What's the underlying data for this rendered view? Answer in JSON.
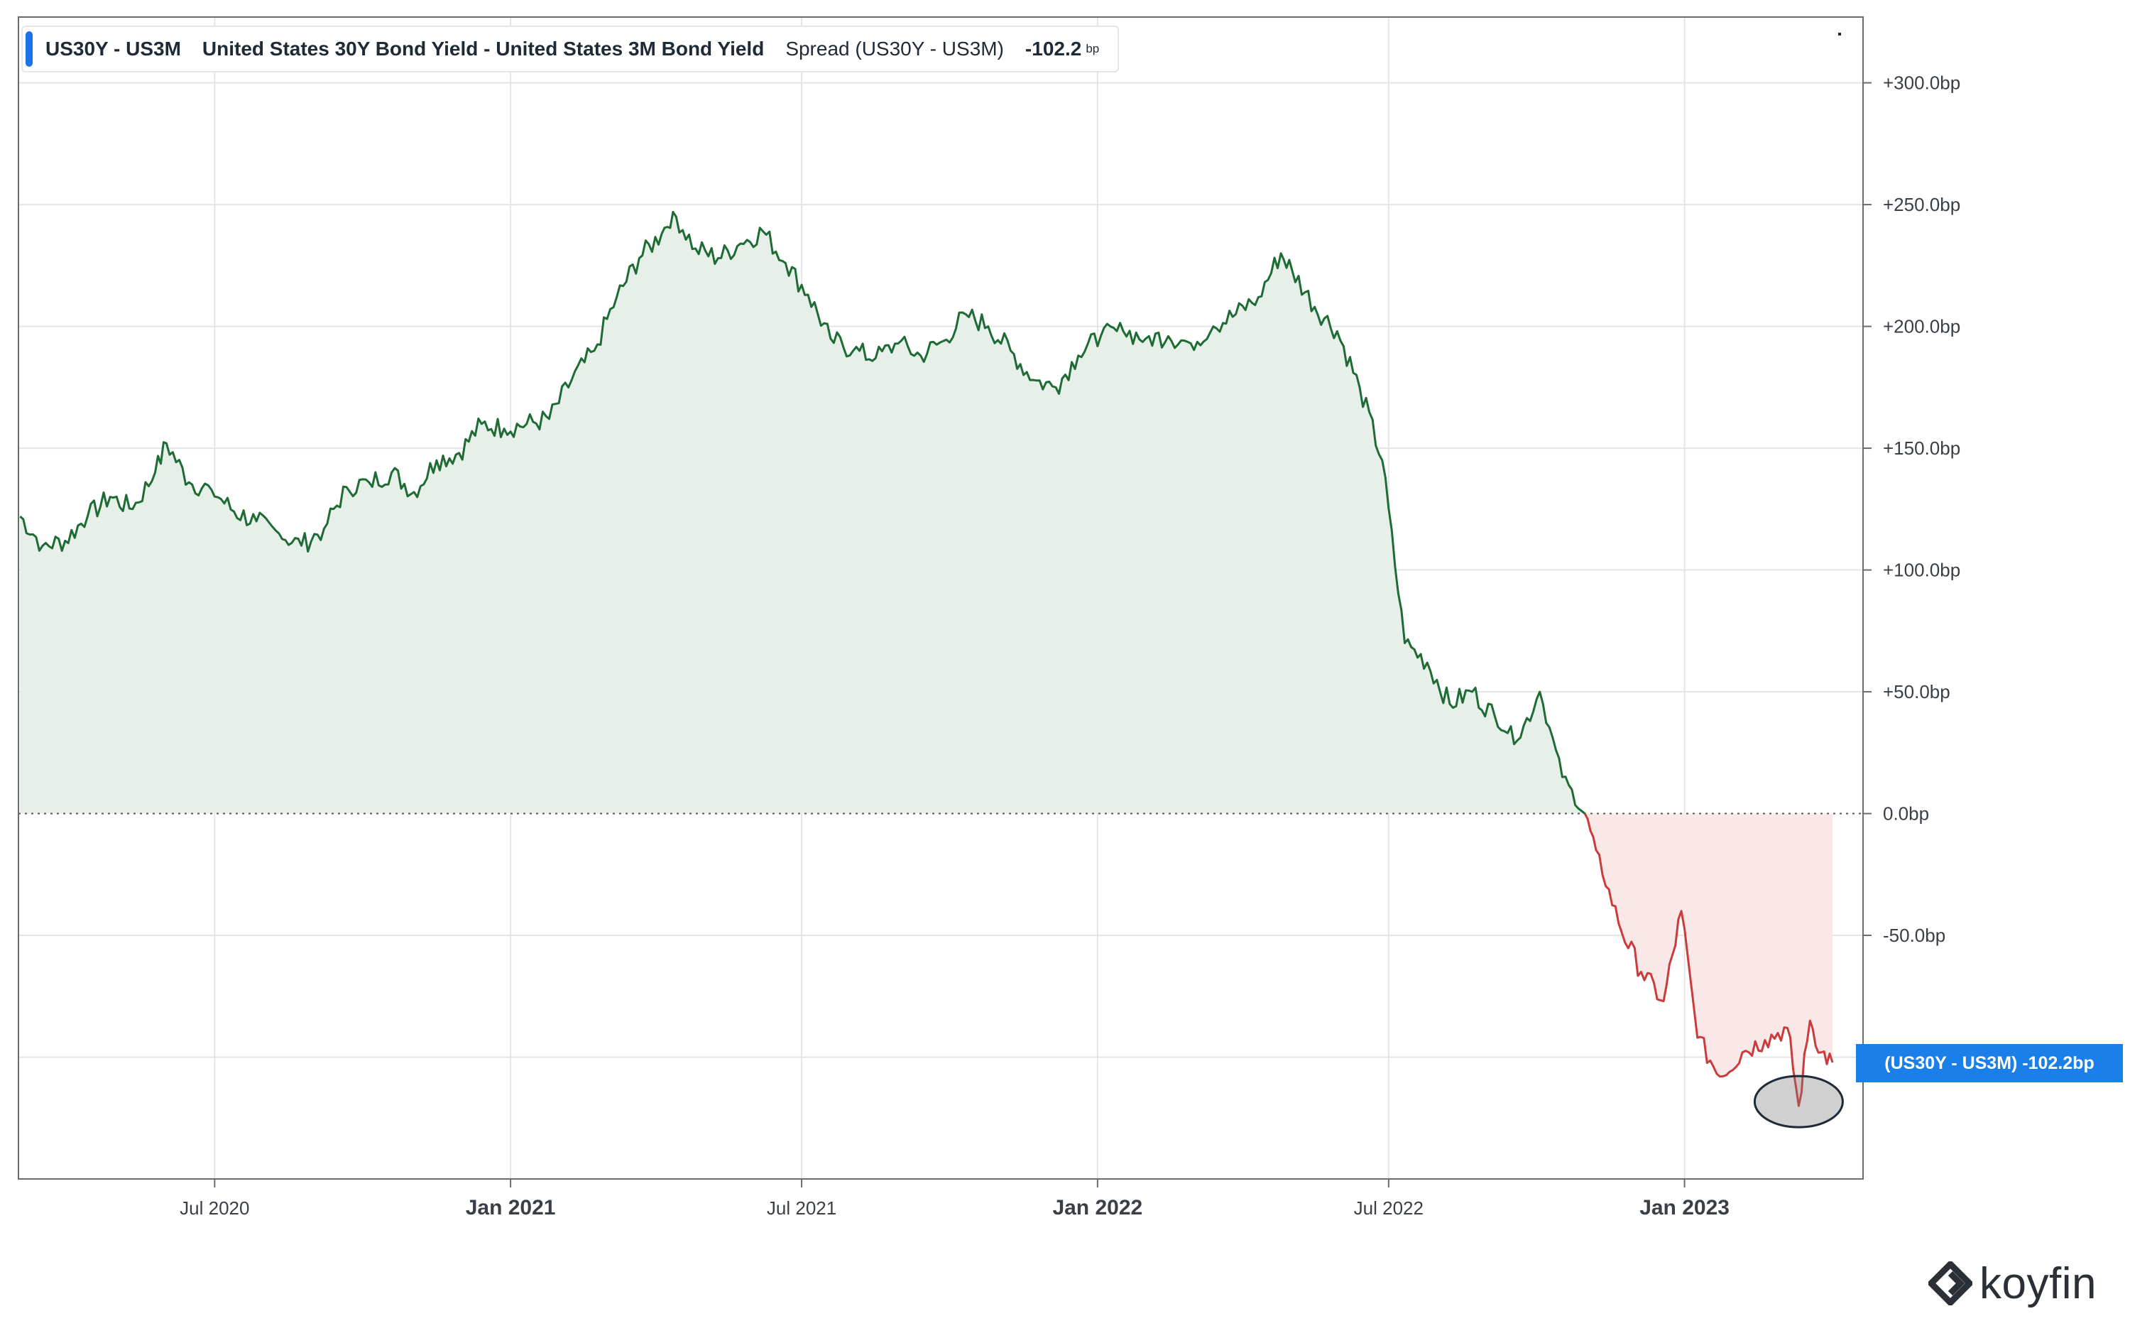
{
  "header": {
    "ticker": "US30Y - US3M",
    "description": "United States 30Y Bond Yield - United States 3M Bond Yield",
    "spread_label": "Spread (US30Y - US3M)",
    "value": "-102.2",
    "unit": "bp"
  },
  "price_tag": "(US30Y - US3M)   -102.2bp",
  "logo_text": "koyfin",
  "colors": {
    "positive_line": "#1e6b35",
    "positive_fill": "#e6f0e9",
    "negative_line": "#cc3b3b",
    "negative_fill": "#fae8e8",
    "accent": "#1a7fe8",
    "grid": "#e5e5e5"
  },
  "chart_data": {
    "type": "area",
    "series": [
      {
        "name": "Spread (US30Y - US3M)",
        "unit": "bp",
        "points": [
          [
            "2020-03-02",
            122
          ],
          [
            "2020-03-16",
            110
          ],
          [
            "2020-03-30",
            112
          ],
          [
            "2020-04-13",
            122
          ],
          [
            "2020-04-27",
            130
          ],
          [
            "2020-05-11",
            125
          ],
          [
            "2020-05-25",
            140
          ],
          [
            "2020-06-01",
            152
          ],
          [
            "2020-06-15",
            136
          ],
          [
            "2020-06-29",
            133
          ],
          [
            "2020-07-13",
            124
          ],
          [
            "2020-07-27",
            120
          ],
          [
            "2020-08-10",
            115
          ],
          [
            "2020-08-24",
            110
          ],
          [
            "2020-09-07",
            117
          ],
          [
            "2020-09-21",
            134
          ],
          [
            "2020-10-05",
            136
          ],
          [
            "2020-10-19",
            140
          ],
          [
            "2020-11-02",
            132
          ],
          [
            "2020-11-16",
            145
          ],
          [
            "2020-11-30",
            148
          ],
          [
            "2020-12-14",
            160
          ],
          [
            "2020-12-28",
            158
          ],
          [
            "2021-01-11",
            160
          ],
          [
            "2021-01-25",
            162
          ],
          [
            "2021-02-08",
            178
          ],
          [
            "2021-02-22",
            190
          ],
          [
            "2021-03-08",
            212
          ],
          [
            "2021-03-22",
            228
          ],
          [
            "2021-04-05",
            238
          ],
          [
            "2021-04-12",
            247
          ],
          [
            "2021-04-26",
            232
          ],
          [
            "2021-05-10",
            228
          ],
          [
            "2021-05-24",
            234
          ],
          [
            "2021-06-07",
            239
          ],
          [
            "2021-06-21",
            226
          ],
          [
            "2021-07-05",
            213
          ],
          [
            "2021-07-19",
            195
          ],
          [
            "2021-08-02",
            190
          ],
          [
            "2021-08-16",
            187
          ],
          [
            "2021-08-30",
            193
          ],
          [
            "2021-09-13",
            188
          ],
          [
            "2021-09-27",
            194
          ],
          [
            "2021-10-11",
            205
          ],
          [
            "2021-10-25",
            200
          ],
          [
            "2021-11-08",
            190
          ],
          [
            "2021-11-22",
            178
          ],
          [
            "2021-12-06",
            175
          ],
          [
            "2021-12-20",
            188
          ],
          [
            "2022-01-03",
            196
          ],
          [
            "2022-01-17",
            198
          ],
          [
            "2022-01-31",
            195
          ],
          [
            "2022-02-14",
            196
          ],
          [
            "2022-02-28",
            193
          ],
          [
            "2022-03-14",
            200
          ],
          [
            "2022-03-28",
            205
          ],
          [
            "2022-04-11",
            212
          ],
          [
            "2022-04-25",
            230
          ],
          [
            "2022-05-02",
            223
          ],
          [
            "2022-05-16",
            208
          ],
          [
            "2022-05-30",
            198
          ],
          [
            "2022-06-13",
            175
          ],
          [
            "2022-06-27",
            145
          ],
          [
            "2022-07-11",
            70
          ],
          [
            "2022-07-25",
            62
          ],
          [
            "2022-08-08",
            45
          ],
          [
            "2022-08-22",
            50
          ],
          [
            "2022-09-05",
            40
          ],
          [
            "2022-09-19",
            30
          ],
          [
            "2022-10-03",
            50
          ],
          [
            "2022-10-17",
            15
          ],
          [
            "2022-10-31",
            0
          ],
          [
            "2022-11-07",
            -15
          ],
          [
            "2022-11-21",
            -45
          ],
          [
            "2022-12-05",
            -65
          ],
          [
            "2022-12-19",
            -77
          ],
          [
            "2022-12-30",
            -40
          ],
          [
            "2023-01-09",
            -92
          ],
          [
            "2023-01-23",
            -108
          ],
          [
            "2023-02-06",
            -98
          ],
          [
            "2023-02-20",
            -93
          ],
          [
            "2023-03-06",
            -88
          ],
          [
            "2023-03-13",
            -120
          ],
          [
            "2023-03-20",
            -85
          ],
          [
            "2023-03-27",
            -98
          ],
          [
            "2023-04-03",
            -102.2
          ]
        ]
      }
    ],
    "x_ticks": [
      "Jul 2020",
      "Jan 2021",
      "Jul 2021",
      "Jan 2022",
      "Jul 2022",
      "Jan 2023"
    ],
    "x_tick_dates": [
      "2020-07-01",
      "2021-01-01",
      "2021-07-01",
      "2022-01-01",
      "2022-07-01",
      "2023-01-01"
    ],
    "x_range": [
      "2020-03-01",
      "2023-04-22"
    ],
    "y_ticks": [
      "+300.0bp",
      "+250.0bp",
      "+200.0bp",
      "+150.0bp",
      "+100.0bp",
      "+50.0bp",
      "0.0bp",
      "-50.0bp"
    ],
    "y_tick_values": [
      300,
      250,
      200,
      150,
      100,
      50,
      0,
      -50
    ],
    "ylim": [
      -150,
      327
    ],
    "y_axis_side": "right",
    "grid": true,
    "zero_line": "dotted",
    "annotation": "grey ellipse marking the March 2023 low"
  }
}
